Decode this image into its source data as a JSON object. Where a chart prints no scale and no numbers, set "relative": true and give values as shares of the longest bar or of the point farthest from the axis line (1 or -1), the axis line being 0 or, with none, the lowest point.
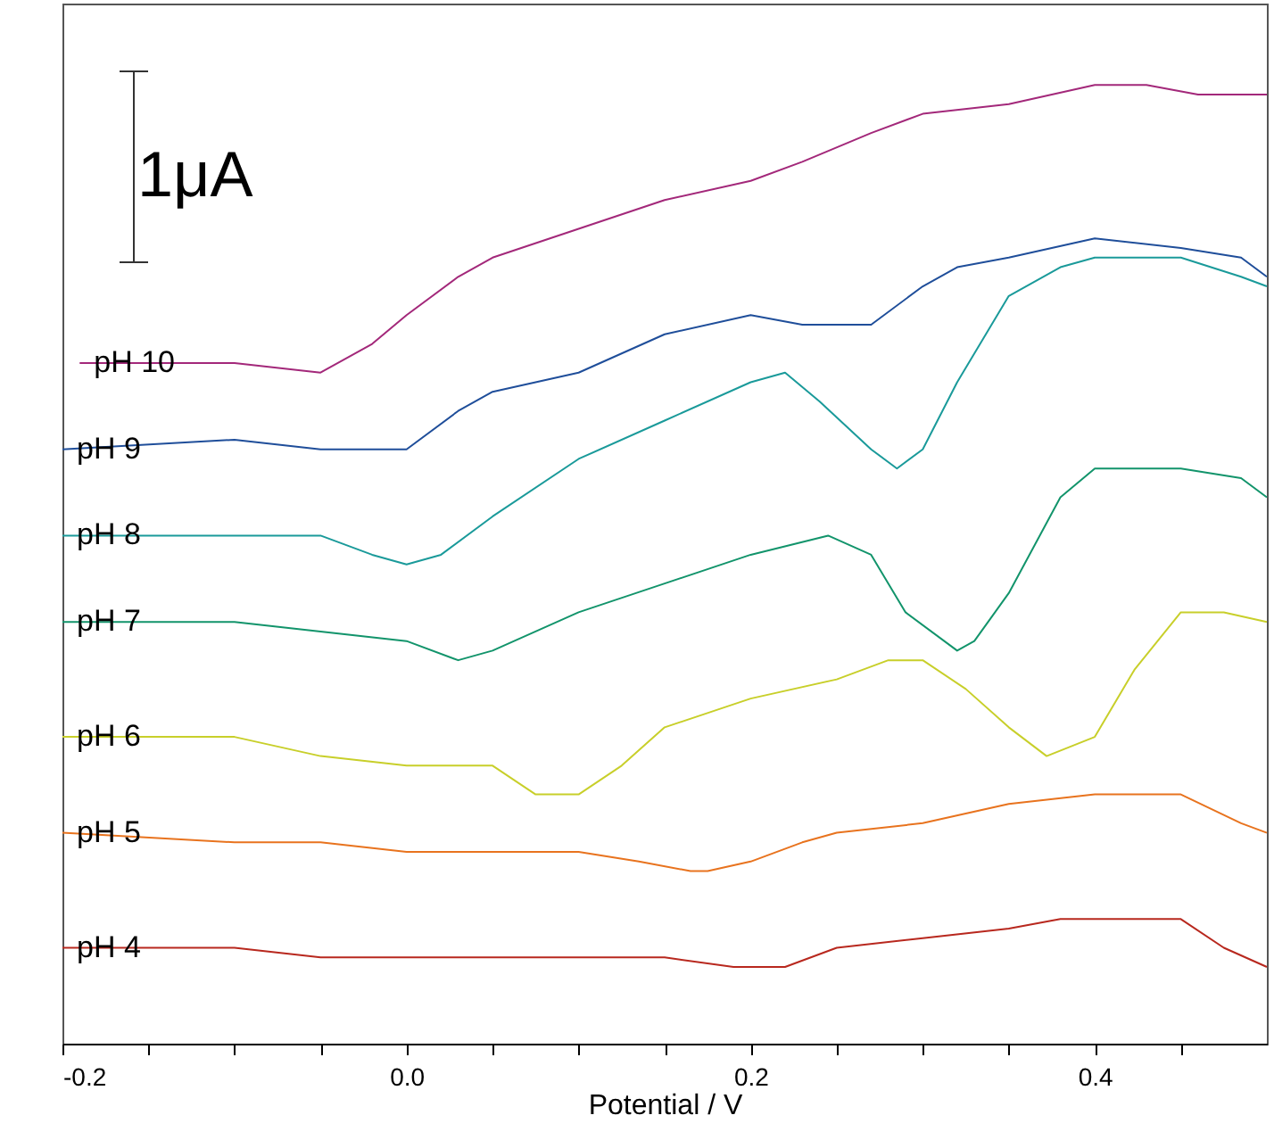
{
  "chart_data": {
    "type": "line",
    "relative": true,
    "xlabel": "Potential / V",
    "xlim": [
      -0.2,
      0.5
    ],
    "xticks": [
      -0.2,
      {
        "value": -0.15,
        "label": null
      },
      {
        "value": -0.1,
        "label": null
      },
      {
        "value": -0.05,
        "label": null
      },
      {
        "value": 0,
        "label": "0.0"
      },
      {
        "value": 0.05,
        "label": null
      },
      {
        "value": 0.1,
        "label": null
      },
      {
        "value": 0.15,
        "label": null
      },
      0.2,
      {
        "value": 0.25,
        "label": null
      },
      {
        "value": 0.3,
        "label": null
      },
      {
        "value": 0.35,
        "label": null
      },
      0.4,
      {
        "value": 0.45,
        "label": null
      }
    ],
    "tick_labels": "x",
    "grid": false,
    "marker": "none",
    "line_style": "solid",
    "annotations": [
      "1μA"
    ],
    "series": [
      {
        "name": "pH 10",
        "color": "#a3287a",
        "x": [
          -0.19,
          -0.1,
          -0.05,
          -0.02,
          0,
          0.03,
          0.05,
          0.1,
          0.15,
          0.2,
          0.23,
          0.27,
          0.3,
          0.35,
          0.4,
          0.43,
          0.46,
          0.5
        ],
        "values": [
          0.71,
          0.71,
          0.7,
          0.73,
          0.76,
          0.8,
          0.82,
          0.85,
          0.88,
          0.9,
          0.92,
          0.95,
          0.97,
          0.98,
          1.0,
          1.0,
          0.99,
          0.99
        ]
      },
      {
        "name": "pH 9",
        "color": "#1f4e9a",
        "x": [
          -0.2,
          -0.1,
          -0.05,
          -0.03,
          0,
          0.03,
          0.05,
          0.1,
          0.15,
          0.2,
          0.23,
          0.27,
          0.3,
          0.32,
          0.35,
          0.4,
          0.45,
          0.485,
          0.5
        ],
        "values": [
          0.62,
          0.63,
          0.62,
          0.62,
          0.62,
          0.66,
          0.68,
          0.7,
          0.74,
          0.76,
          0.75,
          0.75,
          0.79,
          0.81,
          0.82,
          0.84,
          0.83,
          0.82,
          0.8
        ]
      },
      {
        "name": "pH 8",
        "color": "#1a9a9a",
        "x": [
          -0.2,
          -0.1,
          -0.05,
          -0.02,
          0,
          0.02,
          0.05,
          0.1,
          0.15,
          0.2,
          0.22,
          0.24,
          0.27,
          0.285,
          0.3,
          0.32,
          0.35,
          0.38,
          0.4,
          0.45,
          0.485,
          0.5
        ],
        "values": [
          0.53,
          0.53,
          0.53,
          0.51,
          0.5,
          0.51,
          0.55,
          0.61,
          0.65,
          0.69,
          0.7,
          0.67,
          0.62,
          0.6,
          0.62,
          0.69,
          0.78,
          0.81,
          0.82,
          0.82,
          0.8,
          0.79
        ]
      },
      {
        "name": "pH 7",
        "color": "#12946b",
        "x": [
          -0.2,
          -0.1,
          -0.05,
          0,
          0.03,
          0.05,
          0.1,
          0.15,
          0.2,
          0.245,
          0.27,
          0.29,
          0.32,
          0.33,
          0.35,
          0.38,
          0.4,
          0.45,
          0.485,
          0.5
        ],
        "values": [
          0.44,
          0.44,
          0.43,
          0.42,
          0.4,
          0.41,
          0.45,
          0.48,
          0.51,
          0.53,
          0.51,
          0.45,
          0.41,
          0.42,
          0.47,
          0.57,
          0.6,
          0.6,
          0.59,
          0.57
        ]
      },
      {
        "name": "pH 6",
        "color": "#c8cf2a",
        "x": [
          -0.2,
          -0.1,
          -0.05,
          0,
          0.05,
          0.075,
          0.1,
          0.125,
          0.15,
          0.2,
          0.25,
          0.28,
          0.3,
          0.325,
          0.35,
          0.372,
          0.4,
          0.423,
          0.45,
          0.475,
          0.5
        ],
        "values": [
          0.32,
          0.32,
          0.3,
          0.29,
          0.29,
          0.26,
          0.26,
          0.29,
          0.33,
          0.36,
          0.38,
          0.4,
          0.4,
          0.37,
          0.33,
          0.3,
          0.32,
          0.39,
          0.45,
          0.45,
          0.44
        ]
      },
      {
        "name": "pH 5",
        "color": "#e8731e",
        "x": [
          -0.2,
          -0.1,
          -0.05,
          0,
          0.1,
          0.135,
          0.165,
          0.175,
          0.2,
          0.23,
          0.25,
          0.3,
          0.35,
          0.4,
          0.45,
          0.485,
          0.5
        ],
        "values": [
          0.22,
          0.21,
          0.21,
          0.2,
          0.2,
          0.19,
          0.18,
          0.18,
          0.19,
          0.21,
          0.22,
          0.23,
          0.25,
          0.26,
          0.26,
          0.23,
          0.22
        ]
      },
      {
        "name": "pH 4",
        "color": "#b8281e",
        "x": [
          -0.2,
          -0.1,
          -0.05,
          0,
          0.1,
          0.15,
          0.19,
          0.22,
          0.25,
          0.3,
          0.35,
          0.38,
          0.4,
          0.45,
          0.475,
          0.5
        ],
        "values": [
          0.1,
          0.1,
          0.09,
          0.09,
          0.09,
          0.09,
          0.08,
          0.08,
          0.1,
          0.11,
          0.12,
          0.13,
          0.13,
          0.13,
          0.1,
          0.08
        ]
      }
    ]
  }
}
